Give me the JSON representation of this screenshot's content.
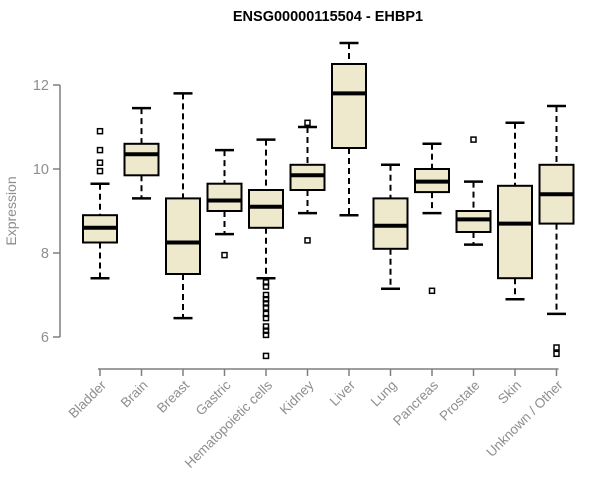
{
  "figure": {
    "title": "ENSG00000115504 - EHBP1",
    "y_axis_label": "Expression"
  },
  "chart_data": {
    "type": "boxplot",
    "title": "ENSG00000115504 - EHBP1",
    "xlabel": "",
    "ylabel": "Expression",
    "ylim": [
      5.2,
      13.3
    ],
    "yticks": [
      6,
      8,
      10,
      12
    ],
    "grid": false,
    "legend": "none",
    "colors": {
      "box_fill": "#eee8cd",
      "box_stroke": "#000000",
      "median": "#000000",
      "whisker": "#000000",
      "outlier": "#000000",
      "axis": "#7f7f7f",
      "tick_label": "#8e8e8e",
      "title": "#000000",
      "background": "#ffffff"
    },
    "categories": [
      "Bladder",
      "Brain",
      "Breast",
      "Gastric",
      "Hematopoietic cells",
      "Kidney",
      "Liver",
      "Lung",
      "Pancreas",
      "Prostate",
      "Skin",
      "Unknown / Other"
    ],
    "series": [
      {
        "category": "Bladder",
        "whisker_low": 7.4,
        "q1": 8.25,
        "median": 8.6,
        "q3": 8.9,
        "whisker_high": 9.65,
        "outliers": [
          9.95,
          10.15,
          10.45,
          10.9
        ]
      },
      {
        "category": "Brain",
        "whisker_low": 9.3,
        "q1": 9.85,
        "median": 10.35,
        "q3": 10.6,
        "whisker_high": 11.45,
        "outliers": []
      },
      {
        "category": "Breast",
        "whisker_low": 6.45,
        "q1": 7.5,
        "median": 8.25,
        "q3": 9.3,
        "whisker_high": 11.8,
        "outliers": []
      },
      {
        "category": "Gastric",
        "whisker_low": 8.45,
        "q1": 9.0,
        "median": 9.25,
        "q3": 9.65,
        "whisker_high": 10.45,
        "outliers": [
          7.95
        ]
      },
      {
        "category": "Hematopoietic cells",
        "whisker_low": 7.4,
        "q1": 8.6,
        "median": 9.1,
        "q3": 9.5,
        "whisker_high": 10.7,
        "outliers": [
          7.3,
          7.2,
          7.0,
          6.9,
          6.8,
          6.7,
          6.55,
          6.45,
          6.25,
          6.15,
          6.05,
          5.55
        ]
      },
      {
        "category": "Kidney",
        "whisker_low": 8.95,
        "q1": 9.5,
        "median": 9.85,
        "q3": 10.1,
        "whisker_high": 11.0,
        "outliers": [
          11.1,
          8.3
        ]
      },
      {
        "category": "Liver",
        "whisker_low": 8.9,
        "q1": 10.5,
        "median": 11.8,
        "q3": 12.5,
        "whisker_high": 13.0,
        "outliers": []
      },
      {
        "category": "Lung",
        "whisker_low": 7.15,
        "q1": 8.1,
        "median": 8.65,
        "q3": 9.3,
        "whisker_high": 10.1,
        "outliers": []
      },
      {
        "category": "Pancreas",
        "whisker_low": 8.95,
        "q1": 9.45,
        "median": 9.7,
        "q3": 10.0,
        "whisker_high": 10.6,
        "outliers": [
          7.1
        ]
      },
      {
        "category": "Prostate",
        "whisker_low": 8.2,
        "q1": 8.5,
        "median": 8.8,
        "q3": 9.0,
        "whisker_high": 9.7,
        "outliers": [
          10.7
        ]
      },
      {
        "category": "Skin",
        "whisker_low": 6.9,
        "q1": 7.4,
        "median": 8.7,
        "q3": 9.6,
        "whisker_high": 11.1,
        "outliers": []
      },
      {
        "category": "Unknown / Other",
        "whisker_low": 6.55,
        "q1": 8.7,
        "median": 9.4,
        "q3": 10.1,
        "whisker_high": 11.5,
        "outliers": [
          5.75,
          5.6
        ]
      }
    ]
  }
}
